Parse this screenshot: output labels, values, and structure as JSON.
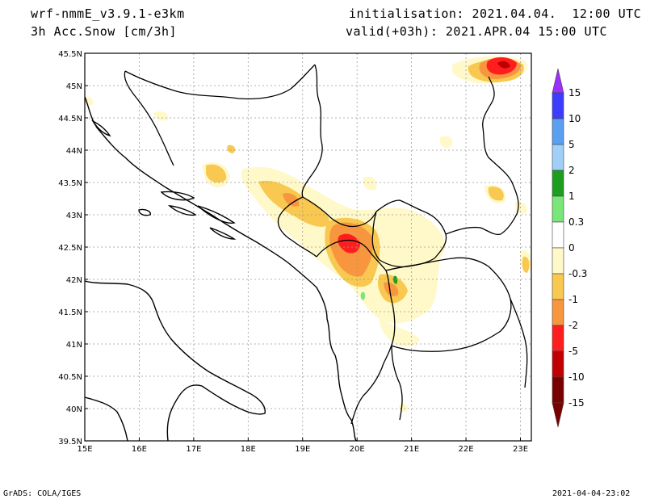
{
  "header": {
    "model": "wrf-nmmE_v3.9.1-e3km",
    "field": "3h Acc.Snow [cm/3h]",
    "init": "initialisation: 2021.04.04.  12:00 UTC",
    "valid": "valid(+03h): 2021.APR.04 15:00 UTC"
  },
  "footer": {
    "left": "GrADS: COLA/IGES",
    "right": "2021-04-04-23:02"
  },
  "map": {
    "lon_labels": [
      "15E",
      "16E",
      "17E",
      "18E",
      "19E",
      "20E",
      "21E",
      "22E",
      "23E"
    ],
    "lat_labels": [
      "45.5N",
      "45N",
      "44.5N",
      "44N",
      "43.5N",
      "43N",
      "42.5N",
      "42N",
      "41.5N",
      "41N",
      "40.5N",
      "40N",
      "39.5N"
    ]
  },
  "colorbar": {
    "labels": [
      "15",
      "10",
      "5",
      "2",
      "1",
      "0.3",
      "0",
      "-0.3",
      "-1",
      "-2",
      "-5",
      "-10",
      "-15"
    ],
    "colors": [
      "#9b30ff",
      "#3c3cff",
      "#5aa0f0",
      "#a0d0f8",
      "#1e9e1e",
      "#78e678",
      "#ffffff",
      "#fff8c8",
      "#f8c850",
      "#f89640",
      "#ff1e1e",
      "#c00000",
      "#780000"
    ]
  }
}
